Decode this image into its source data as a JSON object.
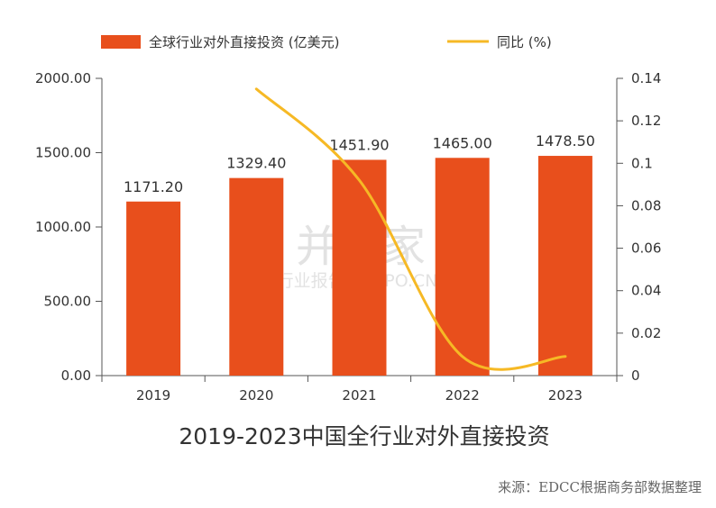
{
  "chart_data": {
    "type": "bar",
    "title": "2019-2023中国全行业对外直接投资",
    "categories": [
      "2019",
      "2020",
      "2021",
      "2022",
      "2023"
    ],
    "series": [
      {
        "name": "全球行业对外直接投资 (亿美元)",
        "type": "bar",
        "axis": "left",
        "values": [
          1171.2,
          1329.4,
          1451.9,
          1465.0,
          1478.5
        ],
        "labels": [
          "1171.20",
          "1329.40",
          "1451.90",
          "1465.00",
          "1478.50"
        ]
      },
      {
        "name": "同比 (%)",
        "type": "line",
        "axis": "right",
        "smooth": true,
        "x": [
          "2020",
          "2021",
          "2022",
          "2023"
        ],
        "values": [
          0.135,
          0.092,
          0.009,
          0.009
        ]
      }
    ],
    "ylim_left": [
      0,
      2000
    ],
    "yticks_left": [
      "0.00",
      "500.00",
      "1000.00",
      "1500.00",
      "2000.00"
    ],
    "ylim_right": [
      0,
      0.14
    ],
    "yticks_right": [
      "0",
      "0.02",
      "0.04",
      "0.06",
      "0.08",
      "0.1",
      "0.12",
      "0.14"
    ],
    "legend_position": "top",
    "grid": false,
    "colors": {
      "bar": "#e84f1c",
      "line": "#f6b925"
    }
  },
  "source": "来源：EDCC根据商务部数据整理",
  "watermark": {
    "brand": "并购家",
    "sub": "行业报告 IPOIPO.CN"
  }
}
